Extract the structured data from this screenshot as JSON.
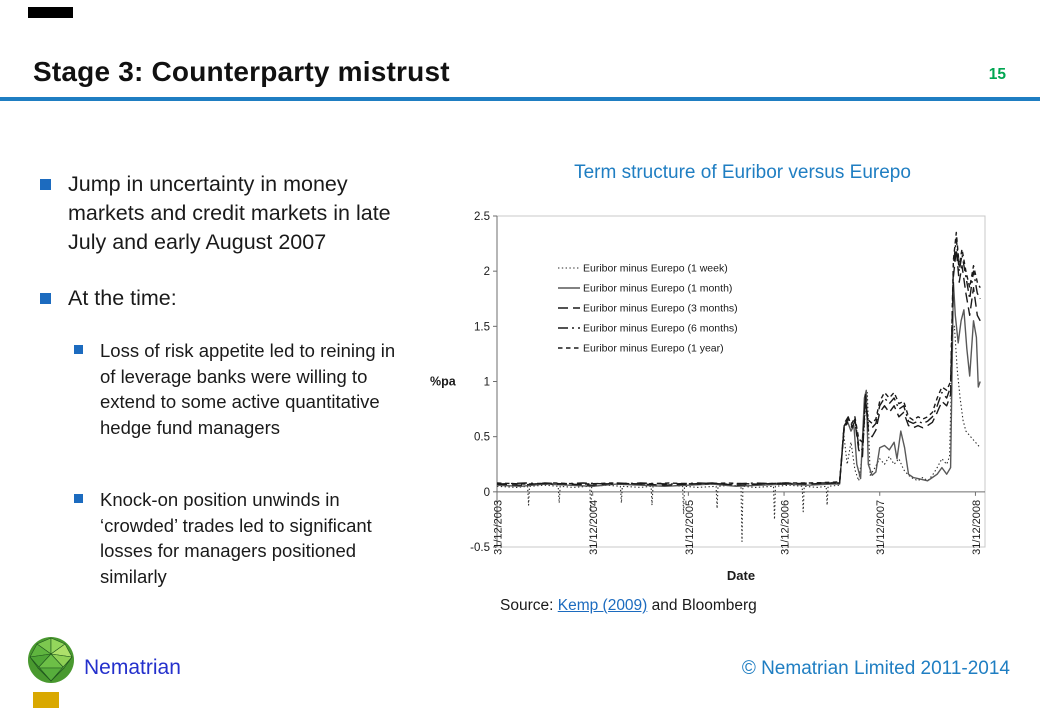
{
  "slide": {
    "title": "Stage 3: Counterparty mistrust",
    "page_number": "15",
    "accent_blue": "#1F7EC2",
    "page_number_color": "#00A651",
    "bullet_color": "#1C6BBF"
  },
  "bullets": {
    "item1": "Jump in uncertainty in money markets and credit markets in late July and early August 2007",
    "item2": "At the time:",
    "sub1": "Loss of risk appetite led to reining in of leverage banks were willing to extend to some active quantitative hedge fund managers",
    "sub2": "Knock-on position unwinds in ‘crowded’ trades led to significant losses for managers positioned similarly"
  },
  "chart_data": {
    "type": "line",
    "title": "Term structure of Euribor versus Eurepo",
    "xlabel": "Date",
    "ylabel": "%pa",
    "grid": false,
    "legend_position": "top-left-inside",
    "ylim": [
      -0.5,
      2.5
    ],
    "xlim": [
      0,
      5.1
    ],
    "x_unit": "years since 31/12/2003",
    "yticks": [
      {
        "label": "2.5",
        "v": 2.5
      },
      {
        "label": "2",
        "v": 2
      },
      {
        "label": "1.5",
        "v": 1.5
      },
      {
        "label": "1",
        "v": 1
      },
      {
        "label": "0.5",
        "v": 0.5
      },
      {
        "label": "0",
        "v": 0
      },
      {
        "label": "-0.5",
        "v": -0.5
      }
    ],
    "xticks": [
      {
        "label": "31/12/2003",
        "t": 0
      },
      {
        "label": "31/12/2004",
        "t": 1
      },
      {
        "label": "31/12/2005",
        "t": 2
      },
      {
        "label": "31/12/2006",
        "t": 3
      },
      {
        "label": "31/12/2007",
        "t": 4
      },
      {
        "label": "31/12/2008",
        "t": 5
      }
    ],
    "series": [
      {
        "name": "Euribor minus Eurepo (1 week)",
        "dash": "dotted",
        "color": "#2a2a2a",
        "points": [
          [
            0,
            0.05
          ],
          [
            0.2,
            0.04
          ],
          [
            0.32,
            0.05
          ],
          [
            0.33,
            -0.12
          ],
          [
            0.34,
            0.05
          ],
          [
            0.5,
            0.06
          ],
          [
            0.64,
            0.05
          ],
          [
            0.65,
            -0.1
          ],
          [
            0.66,
            0.05
          ],
          [
            0.8,
            0.04
          ],
          [
            0.97,
            0.05
          ],
          [
            0.98,
            -0.18
          ],
          [
            0.99,
            0.05
          ],
          [
            1.15,
            0.06
          ],
          [
            1.29,
            0.05
          ],
          [
            1.3,
            -0.1
          ],
          [
            1.31,
            0.05
          ],
          [
            1.5,
            0.04
          ],
          [
            1.61,
            0.05
          ],
          [
            1.62,
            -0.12
          ],
          [
            1.63,
            0.05
          ],
          [
            1.8,
            0.06
          ],
          [
            1.94,
            0.05
          ],
          [
            1.95,
            -0.2
          ],
          [
            1.96,
            0.05
          ],
          [
            2.1,
            0.04
          ],
          [
            2.29,
            0.05
          ],
          [
            2.3,
            -0.15
          ],
          [
            2.31,
            0.05
          ],
          [
            2.45,
            0.06
          ],
          [
            2.55,
            0.05
          ],
          [
            2.56,
            -0.45
          ],
          [
            2.57,
            0.05
          ],
          [
            2.7,
            0.04
          ],
          [
            2.89,
            0.05
          ],
          [
            2.9,
            -0.25
          ],
          [
            2.91,
            0.05
          ],
          [
            3.05,
            0.06
          ],
          [
            3.19,
            0.05
          ],
          [
            3.2,
            -0.18
          ],
          [
            3.21,
            0.05
          ],
          [
            3.35,
            0.04
          ],
          [
            3.44,
            0.05
          ],
          [
            3.45,
            -0.12
          ],
          [
            3.46,
            0.05
          ],
          [
            3.58,
            0.06
          ],
          [
            3.62,
            0.55
          ],
          [
            3.66,
            0.25
          ],
          [
            3.7,
            0.45
          ],
          [
            3.74,
            0.2
          ],
          [
            3.78,
            0.1
          ],
          [
            3.82,
            0.35
          ],
          [
            3.85,
            0.75
          ],
          [
            3.87,
            0.9
          ],
          [
            3.9,
            0.15
          ],
          [
            3.95,
            0.22
          ],
          [
            4,
            0.3
          ],
          [
            4.05,
            0.25
          ],
          [
            4.1,
            0.32
          ],
          [
            4.15,
            0.25
          ],
          [
            4.2,
            0.3
          ],
          [
            4.25,
            0.2
          ],
          [
            4.3,
            0.15
          ],
          [
            4.35,
            0.12
          ],
          [
            4.4,
            0.1
          ],
          [
            4.45,
            0.13
          ],
          [
            4.5,
            0.1
          ],
          [
            4.55,
            0.15
          ],
          [
            4.6,
            0.22
          ],
          [
            4.65,
            0.3
          ],
          [
            4.7,
            0.25
          ],
          [
            4.73,
            0.32
          ],
          [
            4.76,
            1.45
          ],
          [
            4.78,
            1.5
          ],
          [
            4.81,
            1.1
          ],
          [
            4.84,
            0.85
          ],
          [
            4.87,
            0.65
          ],
          [
            4.9,
            0.55
          ],
          [
            4.95,
            0.5
          ],
          [
            5,
            0.45
          ],
          [
            5.05,
            0.4
          ]
        ]
      },
      {
        "name": "Euribor minus Eurepo (1 month)",
        "dash": "solid",
        "color": "#595959",
        "points": [
          [
            0,
            0.06
          ],
          [
            0.25,
            0.05
          ],
          [
            0.5,
            0.07
          ],
          [
            0.75,
            0.06
          ],
          [
            1,
            0.05
          ],
          [
            1.25,
            0.07
          ],
          [
            1.5,
            0.06
          ],
          [
            1.75,
            0.05
          ],
          [
            2,
            0.06
          ],
          [
            2.25,
            0.07
          ],
          [
            2.5,
            0.05
          ],
          [
            2.75,
            0.06
          ],
          [
            3,
            0.07
          ],
          [
            3.25,
            0.06
          ],
          [
            3.5,
            0.07
          ],
          [
            3.58,
            0.07
          ],
          [
            3.63,
            0.6
          ],
          [
            3.67,
            0.62
          ],
          [
            3.7,
            0.55
          ],
          [
            3.73,
            0.6
          ],
          [
            3.76,
            0.25
          ],
          [
            3.8,
            0.12
          ],
          [
            3.84,
            0.85
          ],
          [
            3.86,
            0.92
          ],
          [
            3.88,
            0.25
          ],
          [
            3.92,
            0.15
          ],
          [
            3.96,
            0.18
          ],
          [
            4,
            0.4
          ],
          [
            4.05,
            0.42
          ],
          [
            4.1,
            0.38
          ],
          [
            4.15,
            0.45
          ],
          [
            4.18,
            0.3
          ],
          [
            4.22,
            0.55
          ],
          [
            4.26,
            0.4
          ],
          [
            4.3,
            0.16
          ],
          [
            4.35,
            0.13
          ],
          [
            4.4,
            0.12
          ],
          [
            4.45,
            0.11
          ],
          [
            4.5,
            0.1
          ],
          [
            4.55,
            0.13
          ],
          [
            4.6,
            0.16
          ],
          [
            4.65,
            0.22
          ],
          [
            4.7,
            0.16
          ],
          [
            4.74,
            0.22
          ],
          [
            4.77,
            1.9
          ],
          [
            4.79,
            1.6
          ],
          [
            4.82,
            1.35
          ],
          [
            4.85,
            1.55
          ],
          [
            4.88,
            1.65
          ],
          [
            4.91,
            1.3
          ],
          [
            4.94,
            1.05
          ],
          [
            4.98,
            1.55
          ],
          [
            5.01,
            1.4
          ],
          [
            5.03,
            0.95
          ],
          [
            5.05,
            1
          ]
        ]
      },
      {
        "name": "Euribor minus Eurepo (3 months)",
        "dash": "long-dash",
        "color": "#1a1a1a",
        "points": [
          [
            0,
            0.07
          ],
          [
            0.25,
            0.06
          ],
          [
            0.5,
            0.08
          ],
          [
            0.75,
            0.07
          ],
          [
            1,
            0.06
          ],
          [
            1.25,
            0.08
          ],
          [
            1.5,
            0.07
          ],
          [
            1.75,
            0.06
          ],
          [
            2,
            0.07
          ],
          [
            2.25,
            0.08
          ],
          [
            2.5,
            0.06
          ],
          [
            2.75,
            0.07
          ],
          [
            3,
            0.08
          ],
          [
            3.25,
            0.07
          ],
          [
            3.5,
            0.08
          ],
          [
            3.58,
            0.08
          ],
          [
            3.63,
            0.62
          ],
          [
            3.67,
            0.68
          ],
          [
            3.71,
            0.58
          ],
          [
            3.74,
            0.64
          ],
          [
            3.78,
            0.38
          ],
          [
            3.82,
            0.32
          ],
          [
            3.85,
            0.88
          ],
          [
            3.88,
            0.55
          ],
          [
            3.92,
            0.5
          ],
          [
            3.96,
            0.56
          ],
          [
            4,
            0.72
          ],
          [
            4.05,
            0.78
          ],
          [
            4.1,
            0.72
          ],
          [
            4.15,
            0.78
          ],
          [
            4.2,
            0.68
          ],
          [
            4.25,
            0.72
          ],
          [
            4.3,
            0.6
          ],
          [
            4.35,
            0.58
          ],
          [
            4.4,
            0.6
          ],
          [
            4.45,
            0.58
          ],
          [
            4.5,
            0.6
          ],
          [
            4.55,
            0.63
          ],
          [
            4.6,
            0.72
          ],
          [
            4.65,
            0.82
          ],
          [
            4.7,
            0.78
          ],
          [
            4.74,
            0.88
          ],
          [
            4.77,
            1.95
          ],
          [
            4.8,
            2.2
          ],
          [
            4.83,
            1.9
          ],
          [
            4.86,
            2.05
          ],
          [
            4.9,
            1.8
          ],
          [
            4.94,
            1.6
          ],
          [
            4.98,
            1.85
          ],
          [
            5.02,
            1.6
          ],
          [
            5.05,
            1.55
          ]
        ]
      },
      {
        "name": "Euribor minus Eurepo (6 months)",
        "dash": "dash-dot",
        "color": "#1a1a1a",
        "points": [
          [
            0,
            0.07
          ],
          [
            0.3,
            0.08
          ],
          [
            0.6,
            0.07
          ],
          [
            0.9,
            0.08
          ],
          [
            1.2,
            0.07
          ],
          [
            1.5,
            0.08
          ],
          [
            1.8,
            0.07
          ],
          [
            2.1,
            0.08
          ],
          [
            2.4,
            0.07
          ],
          [
            2.7,
            0.08
          ],
          [
            3,
            0.07
          ],
          [
            3.3,
            0.08
          ],
          [
            3.58,
            0.08
          ],
          [
            3.63,
            0.6
          ],
          [
            3.67,
            0.66
          ],
          [
            3.71,
            0.6
          ],
          [
            3.74,
            0.66
          ],
          [
            3.78,
            0.42
          ],
          [
            3.82,
            0.38
          ],
          [
            3.85,
            0.85
          ],
          [
            3.88,
            0.6
          ],
          [
            3.92,
            0.58
          ],
          [
            3.96,
            0.62
          ],
          [
            4,
            0.78
          ],
          [
            4.05,
            0.85
          ],
          [
            4.1,
            0.8
          ],
          [
            4.15,
            0.85
          ],
          [
            4.2,
            0.75
          ],
          [
            4.25,
            0.78
          ],
          [
            4.3,
            0.64
          ],
          [
            4.35,
            0.62
          ],
          [
            4.4,
            0.64
          ],
          [
            4.45,
            0.62
          ],
          [
            4.5,
            0.64
          ],
          [
            4.55,
            0.68
          ],
          [
            4.6,
            0.78
          ],
          [
            4.65,
            0.9
          ],
          [
            4.7,
            0.85
          ],
          [
            4.74,
            0.95
          ],
          [
            4.77,
            2.05
          ],
          [
            4.8,
            2.3
          ],
          [
            4.83,
            2
          ],
          [
            4.86,
            2.15
          ],
          [
            4.9,
            1.95
          ],
          [
            4.94,
            1.75
          ],
          [
            4.98,
            2
          ],
          [
            5.02,
            1.8
          ],
          [
            5.05,
            1.75
          ]
        ]
      },
      {
        "name": "Euribor minus Eurepo (1 year)",
        "dash": "short-dash",
        "color": "#1a1a1a",
        "points": [
          [
            0,
            0.08
          ],
          [
            0.3,
            0.07
          ],
          [
            0.6,
            0.08
          ],
          [
            0.9,
            0.07
          ],
          [
            1.2,
            0.08
          ],
          [
            1.5,
            0.07
          ],
          [
            1.8,
            0.08
          ],
          [
            2.1,
            0.07
          ],
          [
            2.4,
            0.08
          ],
          [
            2.7,
            0.07
          ],
          [
            3,
            0.08
          ],
          [
            3.3,
            0.08
          ],
          [
            3.58,
            0.09
          ],
          [
            3.63,
            0.58
          ],
          [
            3.67,
            0.64
          ],
          [
            3.71,
            0.62
          ],
          [
            3.74,
            0.68
          ],
          [
            3.78,
            0.48
          ],
          [
            3.82,
            0.45
          ],
          [
            3.85,
            0.82
          ],
          [
            3.88,
            0.65
          ],
          [
            3.92,
            0.62
          ],
          [
            3.96,
            0.66
          ],
          [
            4,
            0.82
          ],
          [
            4.05,
            0.9
          ],
          [
            4.1,
            0.85
          ],
          [
            4.15,
            0.9
          ],
          [
            4.2,
            0.8
          ],
          [
            4.25,
            0.82
          ],
          [
            4.3,
            0.68
          ],
          [
            4.35,
            0.65
          ],
          [
            4.4,
            0.68
          ],
          [
            4.45,
            0.66
          ],
          [
            4.5,
            0.68
          ],
          [
            4.55,
            0.72
          ],
          [
            4.6,
            0.85
          ],
          [
            4.65,
            0.95
          ],
          [
            4.7,
            0.92
          ],
          [
            4.74,
            1
          ],
          [
            4.77,
            2.1
          ],
          [
            4.8,
            2.35
          ],
          [
            4.83,
            2.05
          ],
          [
            4.86,
            2.2
          ],
          [
            4.9,
            2
          ],
          [
            4.94,
            1.85
          ],
          [
            4.98,
            2.05
          ],
          [
            5.02,
            1.9
          ],
          [
            5.05,
            1.85
          ]
        ]
      }
    ]
  },
  "source": {
    "prefix": "Source: ",
    "link": "Kemp (2009)",
    "suffix": " and Bloomberg"
  },
  "footer": {
    "brand": "Nematrian",
    "copyright": "© Nematrian Limited 2011-2014"
  }
}
